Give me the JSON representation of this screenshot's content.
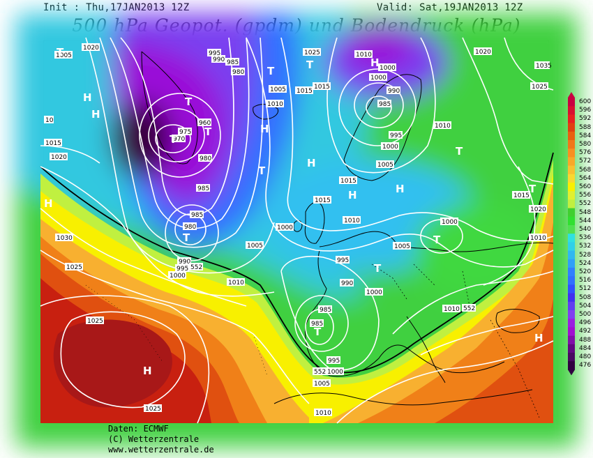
{
  "header": {
    "init": "Init : Thu,17JAN2013 12Z",
    "valid": "Valid: Sat,19JAN2013 12Z",
    "title": "500 hPa Geopot. (gpdm) und Bodendruck (hPa)"
  },
  "credits": {
    "line1": "Daten: ECMWF",
    "line2": "(C) Wetterzentrale",
    "line3": "www.wetterzentrale.de"
  },
  "colors": {
    "deep_purple": "#3a0040",
    "purple": "#9a10d8",
    "violet": "#7a40f0",
    "blue": "#3070ff",
    "light_blue": "#30b8f0",
    "cyan": "#30e0e0",
    "green": "#40d040",
    "bright_green": "#20e030",
    "yellow_green": "#c0f040",
    "yellow": "#f8f000",
    "orange": "#f89020",
    "dark_orange": "#e05010",
    "red": "#c82010",
    "dark_red": "#a81818",
    "isobar": "#ffffff",
    "coast": "#000000"
  },
  "colorbar": {
    "levels": [
      "600",
      "596",
      "592",
      "588",
      "584",
      "580",
      "576",
      "572",
      "568",
      "564",
      "560",
      "556",
      "552",
      "548",
      "544",
      "540",
      "536",
      "532",
      "528",
      "524",
      "520",
      "516",
      "512",
      "508",
      "504",
      "500",
      "496",
      "492",
      "488",
      "484",
      "480",
      "476"
    ],
    "colors": [
      "#c80040",
      "#d81030",
      "#e82020",
      "#e04010",
      "#e86010",
      "#f07818",
      "#f89020",
      "#f8a828",
      "#f8c030",
      "#f8d830",
      "#f8f000",
      "#e0f030",
      "#c0f040",
      "#40d030",
      "#30e030",
      "#50e050",
      "#30e0e0",
      "#30d0e8",
      "#30b8f0",
      "#30a0f8",
      "#3080ff",
      "#3070ff",
      "#3050ff",
      "#4030f0",
      "#6040f0",
      "#8040f0",
      "#9a20e0",
      "#a010d0",
      "#8010a8",
      "#600880",
      "#480860",
      "#300040"
    ]
  },
  "map": {
    "pressure_labels": [
      {
        "text": "1020"
      },
      {
        "text": "1005"
      },
      {
        "text": "995"
      },
      {
        "text": "985"
      },
      {
        "text": "990"
      },
      {
        "text": "980"
      },
      {
        "text": "1025"
      },
      {
        "text": "1010"
      },
      {
        "text": "1000"
      },
      {
        "text": "990"
      },
      {
        "text": "1000"
      },
      {
        "text": "985"
      },
      {
        "text": "1020"
      },
      {
        "text": "1035"
      },
      {
        "text": "1025"
      },
      {
        "text": "1015"
      },
      {
        "text": "1005"
      },
      {
        "text": "1015"
      },
      {
        "text": "1010"
      },
      {
        "text": "975"
      },
      {
        "text": "970"
      },
      {
        "text": "980"
      },
      {
        "text": "985"
      },
      {
        "text": "960"
      },
      {
        "text": "995"
      },
      {
        "text": "1000"
      },
      {
        "text": "1005"
      },
      {
        "text": "1010"
      },
      {
        "text": "1015"
      },
      {
        "text": "1020"
      },
      {
        "text": "1015"
      },
      {
        "text": "1015"
      },
      {
        "text": "1010"
      },
      {
        "text": "1000"
      },
      {
        "text": "985"
      },
      {
        "text": "980"
      },
      {
        "text": "1030"
      },
      {
        "text": "1025"
      },
      {
        "text": "990"
      },
      {
        "text": "995"
      },
      {
        "text": "1000"
      },
      {
        "text": "1010"
      },
      {
        "text": "1005"
      },
      {
        "text": "995"
      },
      {
        "text": "990"
      },
      {
        "text": "1000"
      },
      {
        "text": "985"
      },
      {
        "text": "985"
      },
      {
        "text": "1005"
      },
      {
        "text": "1000"
      },
      {
        "text": "1010"
      },
      {
        "text": "1015"
      },
      {
        "text": "1020"
      },
      {
        "text": "1010"
      },
      {
        "text": "1025"
      },
      {
        "text": "1025"
      },
      {
        "text": "995"
      },
      {
        "text": "1000"
      },
      {
        "text": "1005"
      },
      {
        "text": "1010"
      },
      {
        "text": "552"
      },
      {
        "text": "552"
      },
      {
        "text": "552"
      },
      {
        "text": "1015"
      },
      {
        "text": "10"
      }
    ],
    "centers": [
      {
        "text": "T"
      },
      {
        "text": "H"
      },
      {
        "text": "T"
      },
      {
        "text": "T"
      },
      {
        "text": "T"
      },
      {
        "text": "H"
      },
      {
        "text": "T"
      },
      {
        "text": "H"
      },
      {
        "text": "T"
      },
      {
        "text": "H"
      },
      {
        "text": "H"
      },
      {
        "text": "T"
      },
      {
        "text": "T"
      },
      {
        "text": "H"
      },
      {
        "text": "T"
      },
      {
        "text": "T"
      },
      {
        "text": "T"
      },
      {
        "text": "H"
      },
      {
        "text": "H"
      },
      {
        "text": "H"
      },
      {
        "text": "H"
      },
      {
        "text": "T"
      },
      {
        "text": "T"
      }
    ]
  }
}
